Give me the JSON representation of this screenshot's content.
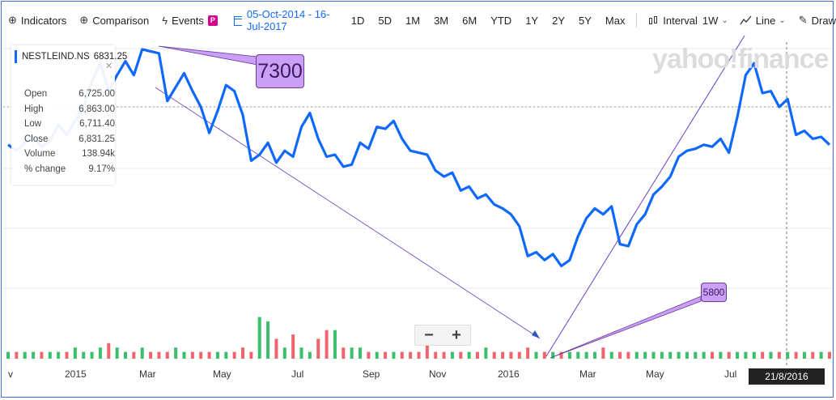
{
  "toolbar": {
    "indicators": "Indicators",
    "comparison": "Comparison",
    "events": "Events",
    "events_badge": "P",
    "date_range": "05-Oct-2014 - 16-Jul-2017",
    "ranges": [
      "1D",
      "5D",
      "1M",
      "3M",
      "6M",
      "YTD",
      "1Y",
      "2Y",
      "5Y",
      "Max"
    ],
    "interval_label": "Interval",
    "interval_value": "1W",
    "chart_type": "Line",
    "draw": "Draw"
  },
  "legend": {
    "symbol": "NESTLEIND.NS",
    "value": "6831.25",
    "rows": [
      {
        "label": "Open",
        "value": "6,725.00"
      },
      {
        "label": "High",
        "value": "6,863.00"
      },
      {
        "label": "Low",
        "value": "6,711.40"
      },
      {
        "label": "Close",
        "value": "6,831.25"
      },
      {
        "label": "Volume",
        "value": "138.94k"
      },
      {
        "label": "% change",
        "value": "9.17%"
      }
    ]
  },
  "annotations": {
    "high": "7300",
    "low": "5800"
  },
  "watermark": "yahoo!finance",
  "zoom": {
    "minus": "−",
    "plus": "+"
  },
  "x_axis_labels": [
    "v",
    "2015",
    "Mar",
    "May",
    "Jul",
    "Sep",
    "Nov",
    "2016",
    "Mar",
    "May",
    "Jul"
  ],
  "crosshair_date": "21/8/2016",
  "colors": {
    "line": "#0f69ff",
    "vol_up": "#3bbf6b",
    "vol_down": "#f06470",
    "trend": "#6a3ec9",
    "accent": "#0f69ff"
  },
  "icons": {
    "indicators": "plus-circle-icon",
    "comparison": "plus-circle-icon",
    "events": "lightning-icon",
    "calendar": "calendar-icon",
    "interval": "candles-icon",
    "line": "line-chart-icon",
    "draw": "pencil-icon"
  },
  "chart_data": {
    "type": "line",
    "symbol": "NESTLEIND.NS",
    "interval": "1W",
    "series": [
      {
        "values": [
          6830,
          6800,
          6840,
          6870,
          6820,
          6850,
          6930,
          6880,
          6950,
          7020,
          7150,
          7240,
          7100,
          7180,
          7250,
          7180,
          7310,
          7300,
          7290,
          7050,
          7120,
          7190,
          7100,
          7020,
          6890,
          7000,
          7130,
          7100,
          6980,
          6750,
          6780,
          6840,
          6740,
          6800,
          6770,
          6920,
          6990,
          6860,
          6770,
          6780,
          6720,
          6730,
          6840,
          6810,
          6920,
          6910,
          6950,
          6860,
          6800,
          6790,
          6780,
          6700,
          6670,
          6690,
          6600,
          6620,
          6560,
          6580,
          6530,
          6510,
          6480,
          6420,
          6270,
          6290,
          6250,
          6280,
          6220,
          6250,
          6370,
          6460,
          6510,
          6480,
          6520,
          6330,
          6320,
          6430,
          6480,
          6580,
          6620,
          6670,
          6770,
          6800,
          6810,
          6830,
          6820,
          6860,
          6790,
          6970,
          7180,
          7240,
          7090,
          7100,
          7020,
          7060,
          6880,
          6900,
          6860,
          6870,
          6830
        ]
      },
      {
        "name": "Volume",
        "values": [
          1,
          1,
          1,
          1,
          1,
          1,
          1,
          1,
          2,
          1,
          1,
          2,
          3,
          2,
          1,
          1,
          2,
          1,
          1,
          1,
          2,
          1,
          1,
          1,
          1,
          1,
          1,
          1,
          2,
          1,
          9,
          8,
          4,
          2,
          5,
          2,
          1,
          4,
          6,
          6,
          2,
          2,
          2,
          1,
          1,
          1,
          1,
          1,
          1,
          1,
          3,
          1,
          1,
          1,
          1,
          1,
          1,
          2,
          1,
          1,
          1,
          1,
          2,
          1,
          1,
          1,
          1,
          1,
          1,
          1,
          1,
          2,
          1,
          1,
          1,
          1,
          1,
          1,
          1,
          1,
          1,
          1,
          1,
          1,
          1,
          1,
          1,
          1,
          1,
          1,
          1,
          1,
          1,
          1,
          1,
          1,
          1,
          1,
          1
        ]
      }
    ],
    "annotations": [
      {
        "label": "7300"
      },
      {
        "label": "5800"
      }
    ],
    "x_tick_labels": [
      "2015",
      "Mar",
      "May",
      "Jul",
      "Sep",
      "Nov",
      "2016",
      "Mar",
      "May",
      "Jul"
    ],
    "grid": true
  }
}
